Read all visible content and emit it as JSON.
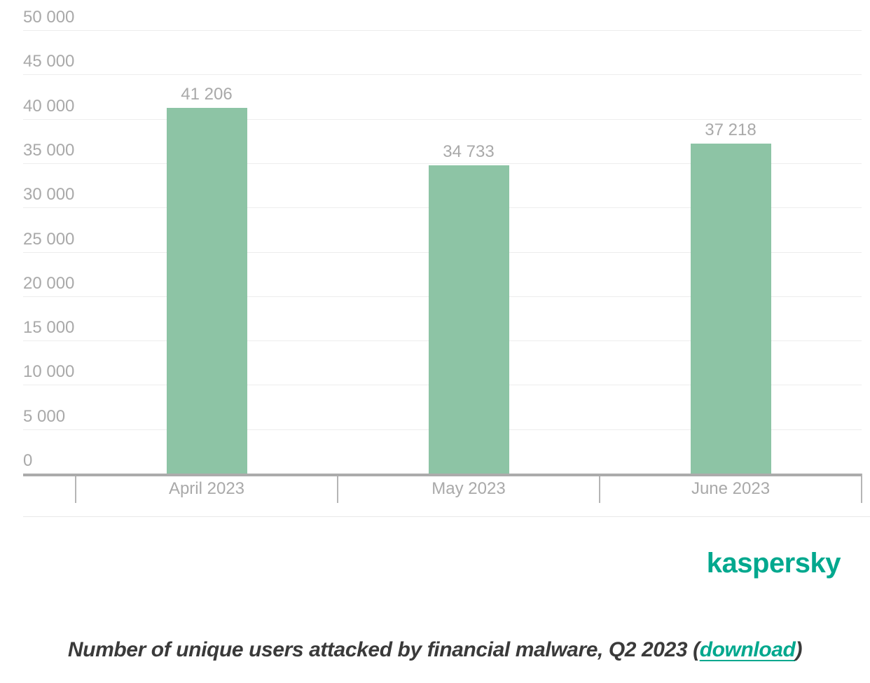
{
  "chart_data": {
    "type": "bar",
    "title": "",
    "categories": [
      "April 2023",
      "May 2023",
      "June 2023"
    ],
    "values": [
      41206,
      34733,
      37218
    ],
    "value_labels": [
      "41 206",
      "34 733",
      "37 218"
    ],
    "ylim": [
      0,
      50000
    ],
    "ytick_step": 5000,
    "ytick_labels": [
      "0",
      "5 000",
      "10 000",
      "15 000",
      "20 000",
      "25 000",
      "30 000",
      "35 000",
      "40 000",
      "45 000",
      "50 000"
    ],
    "grid": true,
    "legend": false,
    "bar_color": "#8dc4a5",
    "axis_label_color": "#a9a9a9"
  },
  "branding": {
    "logo_text": "kaspersky",
    "logo_color": "#00a88e"
  },
  "caption": {
    "text_before_link": "Number of unique users attacked by financial malware, Q2 2023 (",
    "link_text": "download",
    "text_after_link": ")",
    "link_color": "#00a88e"
  }
}
